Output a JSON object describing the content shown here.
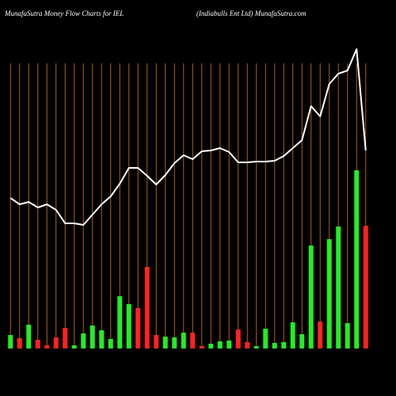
{
  "chart_data": {
    "type": "bar",
    "title": "MunafaSutra  Money Flow  Charts for IEL",
    "subtitle": "(Indiabulls Ent Ltd) MunafaSutra.com",
    "ylim": [
      0,
      360
    ],
    "grid": true,
    "grid_color": "#b0601a",
    "values": [
      17,
      13,
      30,
      11,
      4,
      14,
      26,
      4,
      19,
      29,
      23,
      12,
      66,
      56,
      51,
      103,
      17,
      15,
      14,
      20,
      20,
      3,
      6,
      9,
      10,
      24,
      8,
      3,
      25,
      7,
      8,
      33,
      18,
      130,
      34,
      138,
      154,
      32,
      225,
      155
    ],
    "colors": [
      "#22ee22",
      "#ff2222",
      "#22ee22",
      "#ff2222",
      "#ff2222",
      "#ff2222",
      "#ff2222",
      "#22ee22",
      "#22ee22",
      "#22ee22",
      "#22ee22",
      "#22ee22",
      "#22ee22",
      "#22ee22",
      "#ff2222",
      "#ff2222",
      "#ff2222",
      "#22ee22",
      "#22ee22",
      "#22ee22",
      "#ff2222",
      "#ff2222",
      "#22ee22",
      "#22ee22",
      "#22ee22",
      "#ff2222",
      "#ff2222",
      "#22ee22",
      "#22ee22",
      "#22ee22",
      "#22ee22",
      "#22ee22",
      "#22ee22",
      "#22ee22",
      "#ff2222",
      "#22ee22",
      "#22ee22",
      "#22ee22",
      "#22ee22",
      "#ff2222"
    ],
    "line": {
      "color": "#ffffff",
      "values": [
        190,
        182,
        185,
        178,
        182,
        175,
        158,
        158,
        156,
        169,
        182,
        192,
        208,
        228,
        228,
        218,
        207,
        219,
        234,
        244,
        239,
        249,
        250,
        253,
        248,
        235,
        235,
        236,
        236,
        237,
        243,
        253,
        263,
        306,
        293,
        334,
        347,
        351,
        378,
        250
      ]
    }
  }
}
